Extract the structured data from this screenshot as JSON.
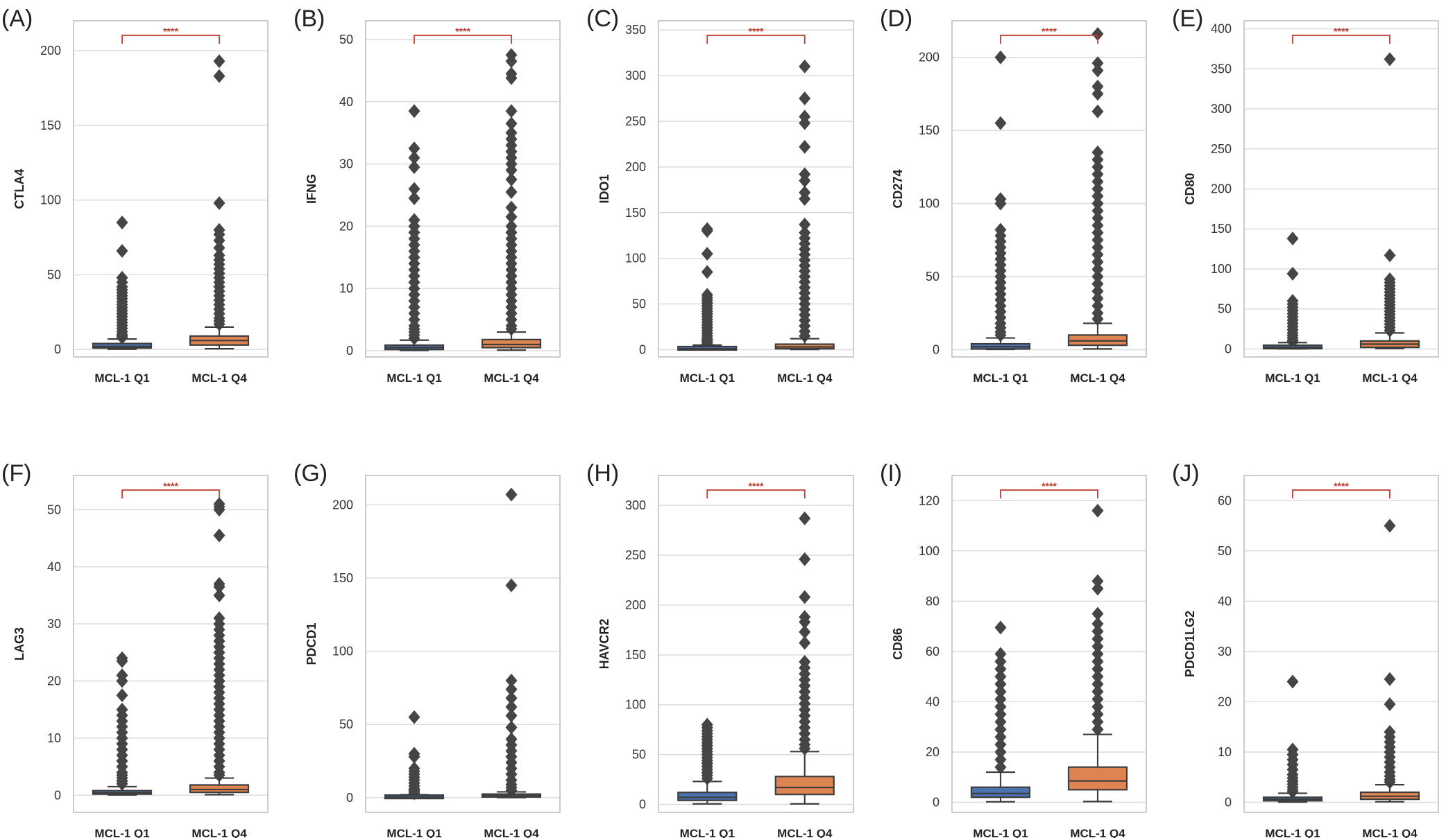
{
  "colors": {
    "q1_box": "#4c72b0",
    "q4_box": "#dd8452",
    "outline": "#3d3d3d",
    "flier": "#454545",
    "significance": "#c0392b"
  },
  "chart_data": [
    {
      "panel": "(A)",
      "type": "box",
      "ylabel": "CTLA4",
      "categories": [
        "MCL-1 Q1",
        "MCL-1 Q4"
      ],
      "ylim": [
        -5,
        220
      ],
      "yticks": [
        0,
        50,
        100,
        150,
        200
      ],
      "significance": "****",
      "grid": true,
      "series": [
        {
          "name": "MCL-1 Q1",
          "whisker_low": 0.2,
          "q1": 1,
          "median": 2,
          "q3": 4,
          "whisker_high": 7,
          "fliers": [
            85,
            66,
            48,
            45,
            42,
            40,
            38,
            36,
            34,
            32,
            30,
            28,
            26,
            24,
            22,
            20,
            18,
            16,
            14,
            12,
            10,
            9,
            8
          ]
        },
        {
          "name": "MCL-1 Q4",
          "whisker_low": 0.5,
          "q1": 3,
          "median": 6,
          "q3": 9,
          "whisker_high": 15,
          "fliers": [
            193,
            183,
            98,
            80,
            77,
            73,
            68,
            63,
            60,
            57,
            54,
            51,
            48,
            45,
            42,
            39,
            36,
            33,
            30,
            27,
            24,
            21,
            19,
            17
          ]
        }
      ]
    },
    {
      "panel": "(B)",
      "type": "box",
      "ylabel": "IFNG",
      "categories": [
        "MCL-1 Q1",
        "MCL-1 Q4"
      ],
      "ylim": [
        -1,
        53
      ],
      "yticks": [
        0,
        10,
        20,
        30,
        40,
        50
      ],
      "significance": "****",
      "grid": true,
      "series": [
        {
          "name": "MCL-1 Q1",
          "whisker_low": 0.05,
          "q1": 0.2,
          "median": 0.5,
          "q3": 0.9,
          "whisker_high": 1.7,
          "fliers": [
            38.5,
            32.5,
            31,
            29.5,
            26,
            24.5,
            21,
            20,
            19,
            18,
            17,
            16,
            15,
            14,
            13,
            12,
            11,
            10,
            9,
            8,
            7,
            6,
            5,
            4,
            3.5,
            3,
            2.5,
            2
          ]
        },
        {
          "name": "MCL-1 Q4",
          "whisker_low": 0.1,
          "q1": 0.5,
          "median": 1,
          "q3": 1.8,
          "whisker_high": 3,
          "fliers": [
            47.5,
            46.5,
            44.5,
            43.8,
            38.5,
            36.5,
            35,
            34,
            33,
            32,
            31,
            30,
            29,
            27.5,
            25.5,
            23,
            21.5,
            20,
            19,
            18,
            17,
            16,
            15,
            14,
            13,
            12,
            11,
            10,
            9,
            8,
            7,
            6,
            5,
            4,
            3.5
          ]
        }
      ]
    },
    {
      "panel": "(C)",
      "type": "box",
      "ylabel": "IDO1",
      "categories": [
        "MCL-1 Q1",
        "MCL-1 Q4"
      ],
      "ylim": [
        -8,
        360
      ],
      "yticks": [
        0,
        50,
        100,
        150,
        200,
        250,
        300,
        350
      ],
      "significance": "****",
      "grid": true,
      "series": [
        {
          "name": "MCL-1 Q1",
          "whisker_low": 0.1,
          "q1": 0.5,
          "median": 1,
          "q3": 2.5,
          "whisker_high": 5,
          "fliers": [
            132,
            130,
            105,
            85,
            60,
            57,
            54,
            51,
            48,
            45,
            42,
            39,
            36,
            33,
            30,
            27,
            24,
            21,
            18,
            15,
            12,
            10,
            8,
            6
          ]
        },
        {
          "name": "MCL-1 Q4",
          "whisker_low": 0.2,
          "q1": 1,
          "median": 3,
          "q3": 6,
          "whisker_high": 12,
          "fliers": [
            310,
            275,
            255,
            248,
            222,
            192,
            185,
            172,
            165,
            137,
            128,
            122,
            116,
            110,
            104,
            98,
            92,
            86,
            80,
            74,
            68,
            62,
            56,
            50,
            44,
            38,
            32,
            26,
            20,
            15
          ]
        }
      ]
    },
    {
      "panel": "(D)",
      "type": "box",
      "ylabel": "CD274",
      "categories": [
        "MCL-1 Q1",
        "MCL-1 Q4"
      ],
      "ylim": [
        -5,
        225
      ],
      "yticks": [
        0,
        50,
        100,
        150,
        200
      ],
      "significance": "****",
      "grid": true,
      "series": [
        {
          "name": "MCL-1 Q1",
          "whisker_low": 0.2,
          "q1": 0.5,
          "median": 2,
          "q3": 4,
          "whisker_high": 8,
          "fliers": [
            200,
            155,
            103,
            100,
            82,
            78,
            74,
            70,
            66,
            62,
            58,
            54,
            50,
            46,
            42,
            38,
            34,
            30,
            26,
            22,
            18,
            15,
            12,
            10
          ]
        },
        {
          "name": "MCL-1 Q4",
          "whisker_low": 0.5,
          "q1": 3,
          "median": 6,
          "q3": 10,
          "whisker_high": 18,
          "fliers": [
            216,
            196,
            191,
            180,
            175,
            163,
            135,
            130,
            125,
            120,
            115,
            110,
            105,
            100,
            95,
            90,
            85,
            80,
            75,
            70,
            65,
            60,
            55,
            50,
            45,
            40,
            35,
            30,
            25,
            21
          ]
        }
      ]
    },
    {
      "panel": "(E)",
      "type": "box",
      "ylabel": "CD80",
      "categories": [
        "MCL-1 Q1",
        "MCL-1 Q4"
      ],
      "ylim": [
        -10,
        410
      ],
      "yticks": [
        0,
        50,
        100,
        150,
        200,
        250,
        300,
        350,
        400
      ],
      "significance": "****",
      "grid": true,
      "series": [
        {
          "name": "MCL-1 Q1",
          "whisker_low": 0.2,
          "q1": 1,
          "median": 2,
          "q3": 4,
          "whisker_high": 8,
          "fliers": [
            138,
            94,
            60,
            56,
            52,
            48,
            44,
            40,
            36,
            32,
            28,
            24,
            20,
            17,
            14,
            11,
            9
          ]
        },
        {
          "name": "MCL-1 Q4",
          "whisker_low": 0.5,
          "q1": 2,
          "median": 6,
          "q3": 10,
          "whisker_high": 20,
          "fliers": [
            362,
            117,
            87,
            83,
            79,
            75,
            71,
            67,
            63,
            59,
            55,
            51,
            47,
            43,
            39,
            35,
            31,
            27,
            23
          ]
        }
      ]
    },
    {
      "panel": "(F)",
      "type": "box",
      "ylabel": "LAG3",
      "categories": [
        "MCL-1 Q1",
        "MCL-1 Q4"
      ],
      "ylim": [
        -3,
        56
      ],
      "yticks": [
        0,
        10,
        20,
        30,
        40,
        50
      ],
      "significance": "****",
      "grid": true,
      "series": [
        {
          "name": "MCL-1 Q1",
          "whisker_low": 0.05,
          "q1": 0.2,
          "median": 0.4,
          "q3": 0.8,
          "whisker_high": 1.5,
          "fliers": [
            24,
            23.5,
            21,
            20,
            17.5,
            15,
            14,
            13,
            12,
            11,
            10,
            9,
            8,
            7,
            6,
            5,
            4,
            3.5,
            3,
            2.5,
            2
          ]
        },
        {
          "name": "MCL-1 Q4",
          "whisker_low": 0.1,
          "q1": 0.5,
          "median": 1,
          "q3": 1.8,
          "whisker_high": 3,
          "fliers": [
            51,
            50.5,
            50,
            45.5,
            37,
            36.5,
            35,
            31,
            30,
            29,
            28,
            27,
            26,
            25,
            24,
            23,
            22,
            21,
            20,
            19,
            18,
            17,
            16,
            15,
            14,
            13,
            12,
            11,
            10,
            9,
            8,
            7,
            6,
            5,
            4,
            3.5
          ]
        }
      ]
    },
    {
      "panel": "(G)",
      "type": "box",
      "ylabel": "PDCD1",
      "categories": [
        "MCL-1 Q1",
        "MCL-1 Q4"
      ],
      "ylim": [
        -10,
        220
      ],
      "yticks": [
        0,
        50,
        100,
        150,
        200
      ],
      "significance": "",
      "grid": true,
      "series": [
        {
          "name": "MCL-1 Q1",
          "whisker_low": 0.05,
          "q1": 0.2,
          "median": 0.5,
          "q3": 1,
          "whisker_high": 2,
          "fliers": [
            55,
            30,
            28,
            20,
            18,
            16,
            14,
            12,
            10,
            8,
            6,
            5,
            4,
            3
          ]
        },
        {
          "name": "MCL-1 Q4",
          "whisker_low": 0.1,
          "q1": 0.5,
          "median": 1.5,
          "q3": 2.5,
          "whisker_high": 4,
          "fliers": [
            207,
            145,
            80,
            74,
            68,
            62,
            56,
            48,
            40,
            36,
            32,
            28,
            24,
            20,
            16,
            12,
            9,
            7,
            5
          ]
        }
      ]
    },
    {
      "panel": "(H)",
      "type": "box",
      "ylabel": "HAVCR2",
      "categories": [
        "MCL-1 Q1",
        "MCL-1 Q4"
      ],
      "ylim": [
        -8,
        330
      ],
      "yticks": [
        0,
        50,
        100,
        150,
        200,
        250,
        300
      ],
      "significance": "****",
      "grid": true,
      "series": [
        {
          "name": "MCL-1 Q1",
          "whisker_low": 0.5,
          "q1": 4,
          "median": 7,
          "q3": 12,
          "whisker_high": 23,
          "fliers": [
            80,
            77,
            74,
            71,
            68,
            65,
            62,
            59,
            56,
            53,
            50,
            47,
            44,
            41,
            38,
            35,
            32,
            29,
            26
          ]
        },
        {
          "name": "MCL-1 Q4",
          "whisker_low": 0.5,
          "q1": 10,
          "median": 17,
          "q3": 28,
          "whisker_high": 53,
          "fliers": [
            287,
            246,
            208,
            188,
            183,
            173,
            162,
            143,
            137,
            131,
            125,
            119,
            113,
            107,
            101,
            95,
            89,
            83,
            77,
            71,
            65,
            60,
            56
          ]
        }
      ]
    },
    {
      "panel": "(I)",
      "type": "box",
      "ylabel": "CD86",
      "categories": [
        "MCL-1 Q1",
        "MCL-1 Q4"
      ],
      "ylim": [
        -4,
        130
      ],
      "yticks": [
        0,
        20,
        40,
        60,
        80,
        100,
        120
      ],
      "significance": "****",
      "grid": true,
      "series": [
        {
          "name": "MCL-1 Q1",
          "whisker_low": 0.2,
          "q1": 2,
          "median": 3.5,
          "q3": 6,
          "whisker_high": 12,
          "fliers": [
            69.5,
            59,
            56,
            53,
            50,
            47,
            44,
            41,
            38,
            35,
            32,
            29,
            26,
            23,
            20,
            17,
            14
          ]
        },
        {
          "name": "MCL-1 Q4",
          "whisker_low": 0.3,
          "q1": 5,
          "median": 8.5,
          "q3": 14,
          "whisker_high": 27,
          "fliers": [
            116,
            88,
            85,
            75,
            71,
            68,
            65,
            62,
            59,
            56,
            53,
            50,
            47,
            44,
            41,
            38,
            35,
            32,
            29
          ]
        }
      ]
    },
    {
      "panel": "(J)",
      "type": "box",
      "ylabel": "PDCD1LG2",
      "categories": [
        "MCL-1 Q1",
        "MCL-1 Q4"
      ],
      "ylim": [
        -2,
        65
      ],
      "yticks": [
        0,
        10,
        20,
        30,
        40,
        50,
        60
      ],
      "significance": "****",
      "grid": true,
      "series": [
        {
          "name": "MCL-1 Q1",
          "whisker_low": 0.05,
          "q1": 0.3,
          "median": 0.6,
          "q3": 1,
          "whisker_high": 1.8,
          "fliers": [
            24,
            10.5,
            9.5,
            8.5,
            7.5,
            6.5,
            5.5,
            4.8,
            4.2,
            3.6,
            3,
            2.5,
            2.1
          ]
        },
        {
          "name": "MCL-1 Q4",
          "whisker_low": 0.1,
          "q1": 0.6,
          "median": 1.2,
          "q3": 2,
          "whisker_high": 3.5,
          "fliers": [
            55,
            24.5,
            19.5,
            14,
            13,
            12,
            11,
            10,
            9,
            8,
            7,
            6,
            5.2,
            4.5,
            4
          ]
        }
      ]
    }
  ]
}
